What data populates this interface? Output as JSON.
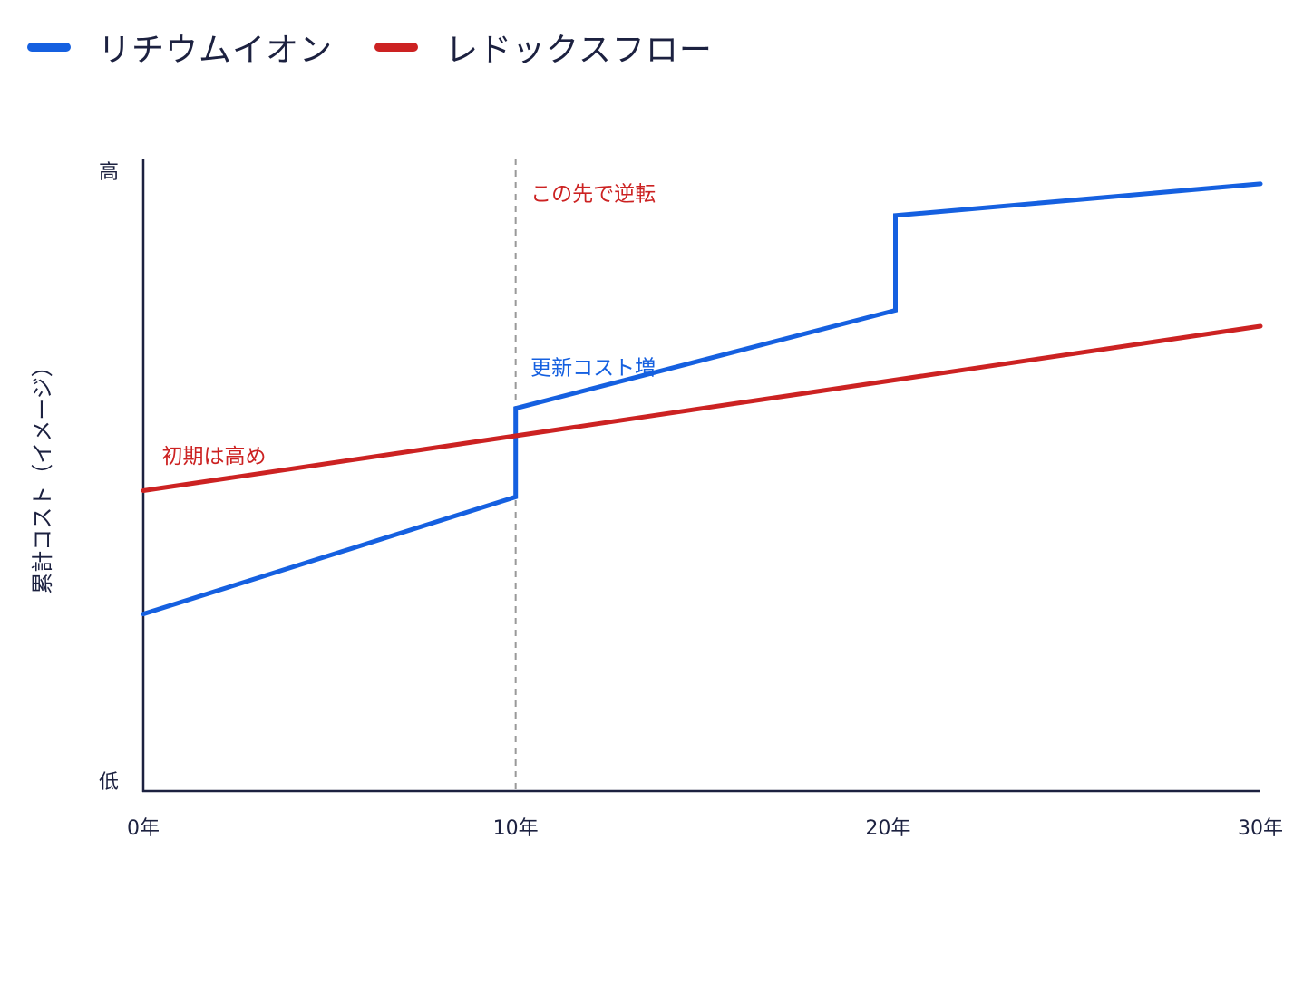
{
  "chart_data": {
    "type": "line",
    "title": "",
    "xlabel": "",
    "ylabel": "累計コスト（イメージ）",
    "y_ticks": [
      {
        "label": "低",
        "value": 0
      },
      {
        "label": "高",
        "value": 100
      }
    ],
    "x_ticks": [
      {
        "label": "0年",
        "value": 0
      },
      {
        "label": "10年",
        "value": 10
      },
      {
        "label": "20年",
        "value": 20
      },
      {
        "label": "30年",
        "value": 30
      }
    ],
    "xlim": [
      0,
      30
    ],
    "ylim": [
      0,
      100
    ],
    "grid": false,
    "legend_position": "top-left",
    "series": [
      {
        "name": "リチウムイオン",
        "color": "#1560e0",
        "points": [
          [
            0,
            28
          ],
          [
            10,
            46.5
          ],
          [
            10,
            60.5
          ],
          [
            20.2,
            76
          ],
          [
            20.2,
            91
          ],
          [
            30,
            96
          ]
        ]
      },
      {
        "name": "レドックスフロー",
        "color": "#cc2222",
        "points": [
          [
            0,
            47.5
          ],
          [
            30,
            73.5
          ]
        ]
      }
    ],
    "vertical_marker": {
      "x": 10,
      "style": "dashed",
      "color": "#999999"
    },
    "annotations": [
      {
        "text": "初期は高め",
        "x": 0.5,
        "y": 53,
        "color": "#cc2222"
      },
      {
        "text": "この先で逆転",
        "x": 10.4,
        "y": 94.5,
        "color": "#cc2222"
      },
      {
        "text": "更新コスト増",
        "x": 10.4,
        "y": 67,
        "color": "#1560e0"
      }
    ]
  }
}
